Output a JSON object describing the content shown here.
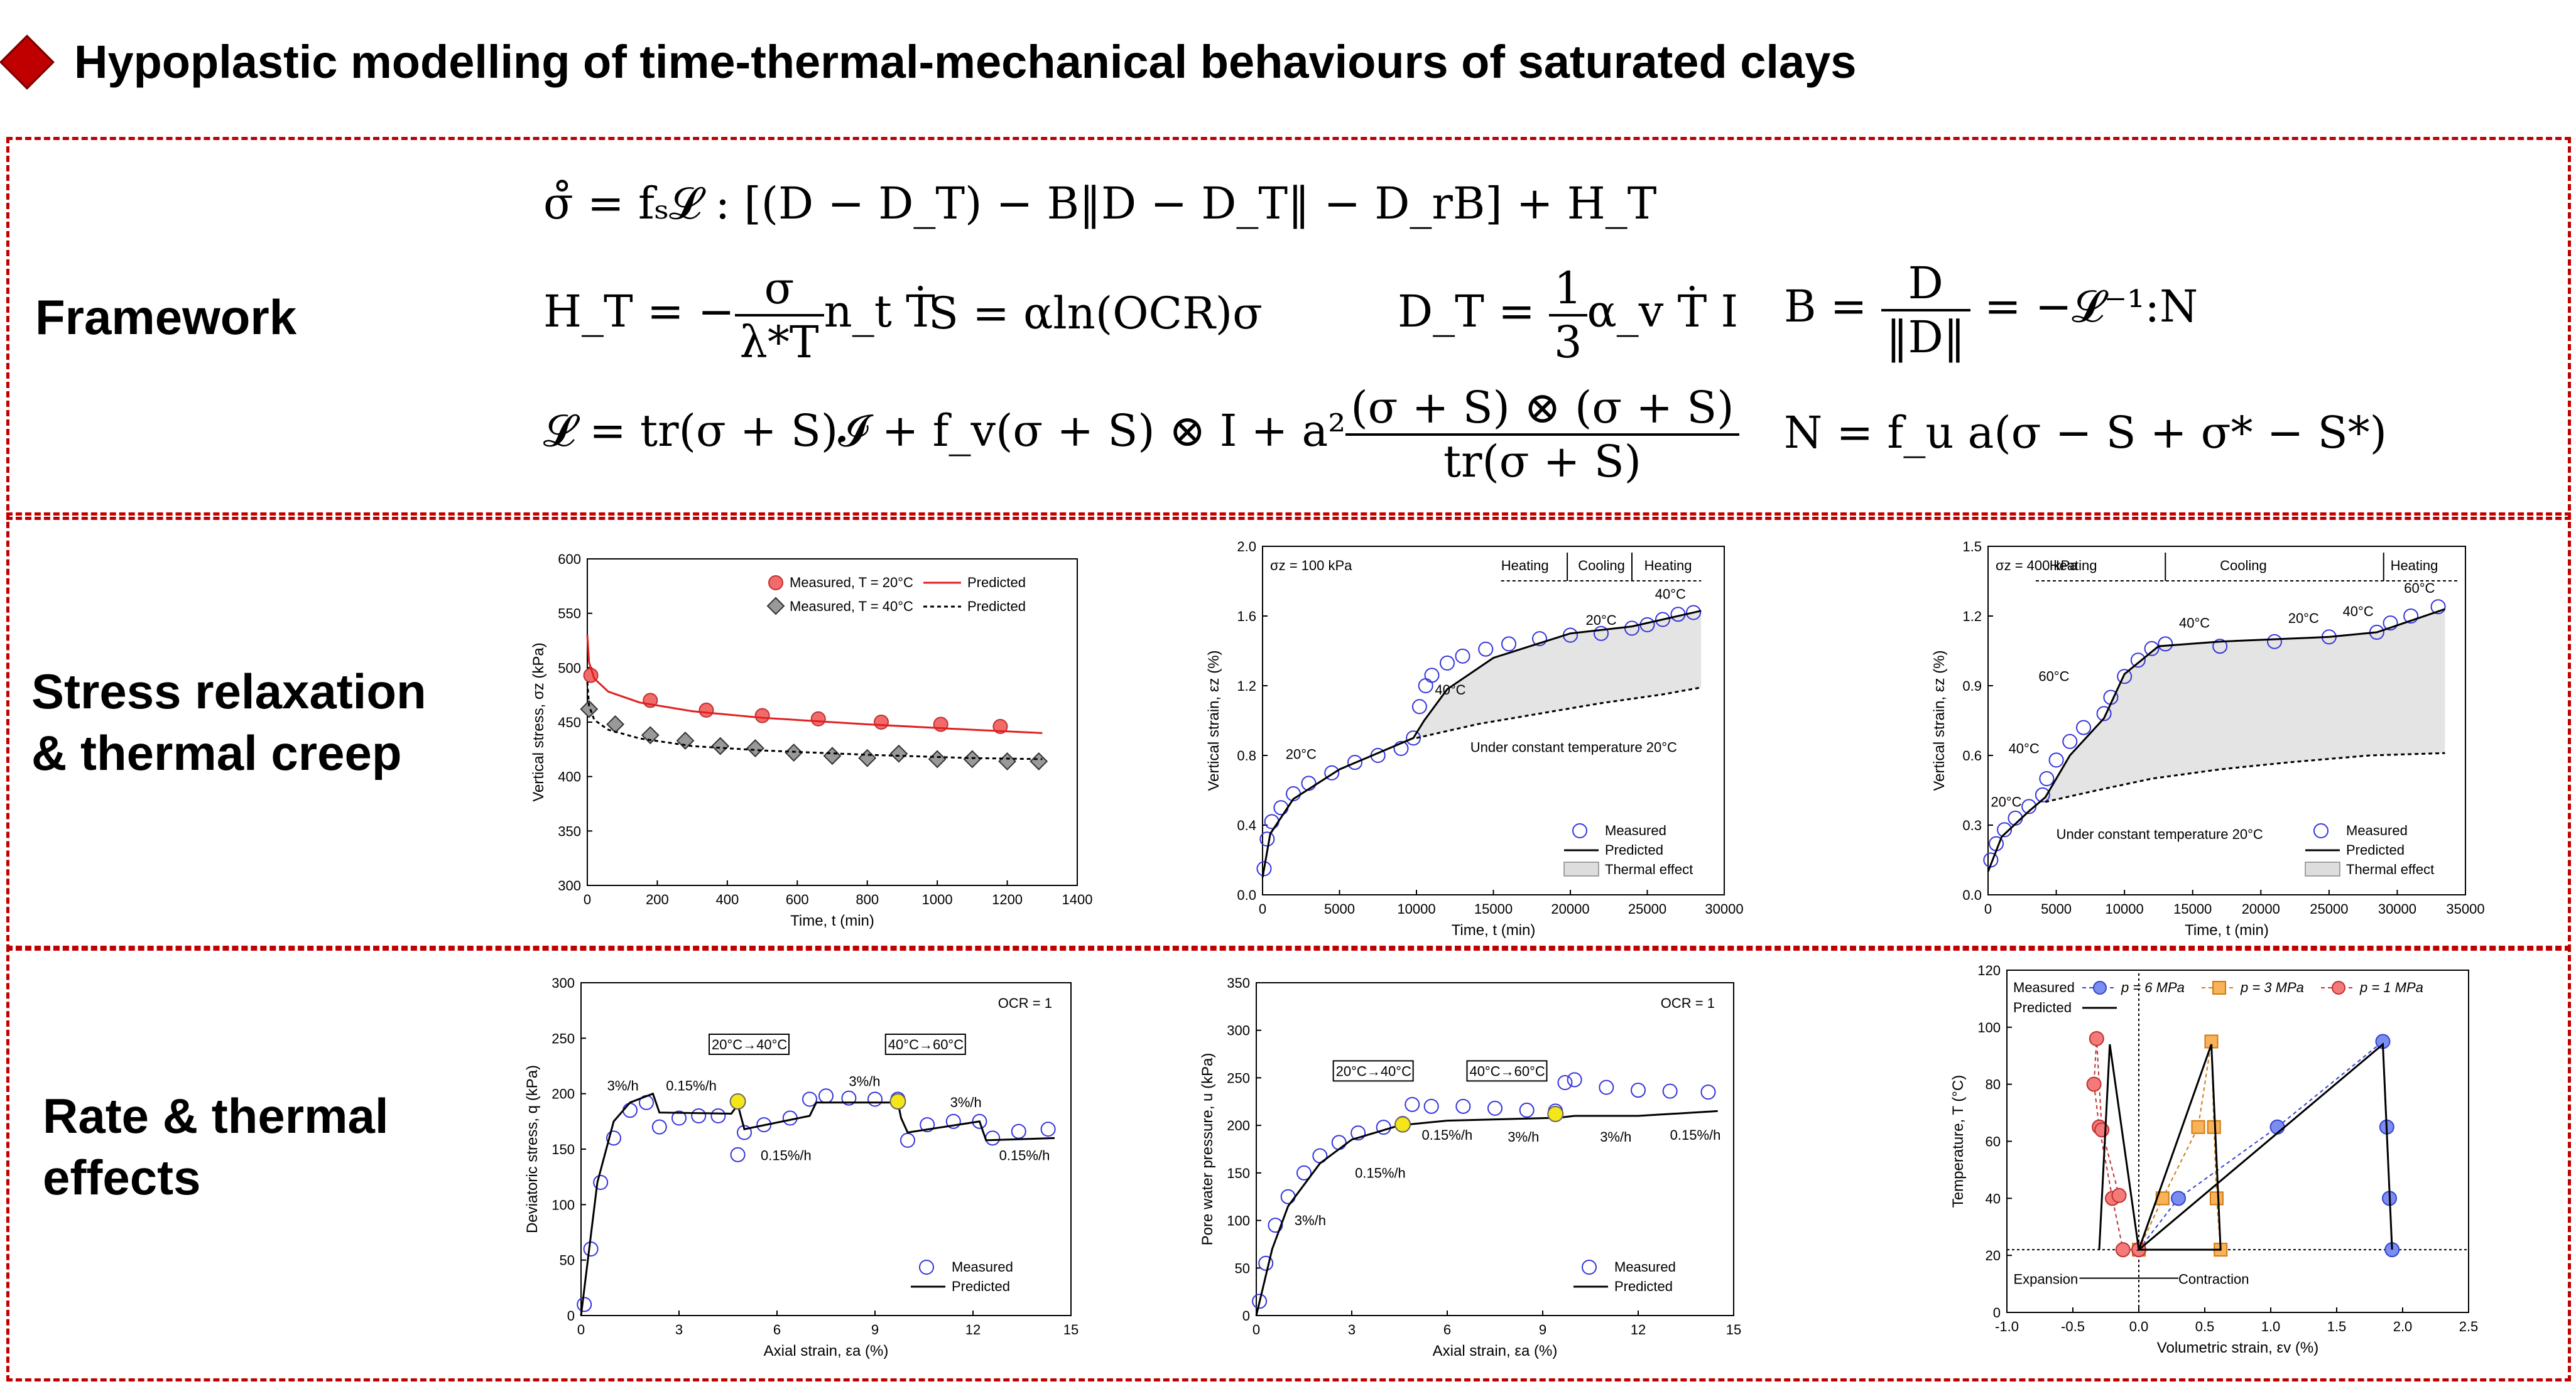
{
  "header": {
    "title": "Hypoplastic modelling of time-thermal-mechanical behaviours of  saturated clays",
    "bullet_color": "#c00000"
  },
  "sections": {
    "framework": "Framework",
    "stress_relaxation_line1": "Stress relaxation",
    "stress_relaxation_line2": "&  thermal creep",
    "rate_line1": "Rate & thermal",
    "rate_line2": "effects"
  },
  "equations": {
    "eq1": "σ̊ = fₛ𝓛 : [(D − D_T) − B‖D − D_T‖ − D_rB] + H_T",
    "eq2a_lhs": "H_T = −",
    "eq2a_num": "σ",
    "eq2a_den": "λ*T",
    "eq2a_rhs": "n_t Ṫ",
    "eq2b": "S = αln(OCR)σ",
    "eq2c_lhs": "D_T =",
    "eq2c_num": "1",
    "eq2c_den": "3",
    "eq2c_rhs": "α_v Ṫ I",
    "eq2d_lhs": "B =",
    "eq2d_num": "D",
    "eq2d_den": "‖D‖",
    "eq2d_rhs": "= −𝓛⁻¹:N",
    "eq3a_lhs": "𝓛   =   tr(σ + S)𝓘 + f_v(σ + S) ⊗ I + a²",
    "eq3a_num": "(σ + S) ⊗ (σ + S)",
    "eq3a_den": "tr(σ + S)",
    "eq3b": "N   =   f_u a(σ − S + σ* − S*)"
  },
  "chart_data": [
    {
      "type": "scatter",
      "xlabel": "Time, t (min)",
      "ylabel": "Vertical stress, σz (kPa)",
      "xlim": [
        0,
        1400
      ],
      "ylim": [
        300,
        600
      ],
      "xticks": [
        "0",
        "200",
        "400",
        "600",
        "800",
        "1000",
        "1200",
        "1400"
      ],
      "yticks": [
        "300",
        "350",
        "400",
        "450",
        "500",
        "550",
        "600"
      ],
      "legend": [
        "Measured, T = 20°C",
        "Measured, T = 40°C",
        "Predicted",
        "Predicted"
      ],
      "series": [
        {
          "name": "Measured, T = 20°C",
          "x": [
            10,
            180,
            340,
            500,
            660,
            840,
            1010,
            1180
          ],
          "y": [
            493,
            470,
            461,
            456,
            453,
            450,
            448,
            446
          ]
        },
        {
          "name": "Measured, T = 40°C",
          "x": [
            5,
            80,
            180,
            280,
            380,
            480,
            590,
            700,
            800,
            890,
            1000,
            1100,
            1200,
            1290
          ],
          "y": [
            462,
            448,
            438,
            433,
            428,
            426,
            422,
            419,
            417,
            421,
            416,
            416,
            414,
            414
          ]
        },
        {
          "name": "Predicted",
          "x": [
            0,
            5,
            20,
            60,
            150,
            300,
            500,
            800,
            1100,
            1300
          ],
          "y": [
            530,
            505,
            490,
            478,
            468,
            460,
            454,
            448,
            443,
            440
          ]
        },
        {
          "name": "Predicted",
          "x": [
            0,
            5,
            20,
            60,
            150,
            300,
            500,
            800,
            1100,
            1300
          ],
          "y": [
            487,
            465,
            452,
            443,
            435,
            428,
            424,
            420,
            417,
            416
          ]
        }
      ]
    },
    {
      "type": "scatter",
      "xlabel": "Time, t (min)",
      "ylabel": "Vertical strain, εz (%)",
      "xlim": [
        0,
        30000
      ],
      "ylim": [
        0,
        2.0
      ],
      "xticks": [
        "0",
        "5000",
        "10000",
        "15000",
        "20000",
        "25000",
        "30000"
      ],
      "yticks": [
        "0.0",
        "0.4",
        "0.8",
        "1.2",
        "1.6",
        "2.0"
      ],
      "annotations": [
        "σz = 100 kPa",
        "Heating",
        "Cooling",
        "Heating",
        "40°C",
        "20°C",
        "40°C",
        "20°C",
        "Under constant temperature 20°C"
      ],
      "legend": [
        "Measured",
        "Predicted",
        "Thermal effect"
      ],
      "series": [
        {
          "name": "Measured",
          "x": [
            100,
            300,
            600,
            1200,
            2000,
            3000,
            4500,
            6000,
            7500,
            9000,
            9800,
            10200,
            10600,
            11000,
            12000,
            13000,
            14500,
            16000,
            18000,
            20000,
            22000,
            24000,
            25000,
            26000,
            27000,
            28000
          ],
          "y": [
            0.15,
            0.32,
            0.42,
            0.5,
            0.58,
            0.64,
            0.7,
            0.76,
            0.8,
            0.84,
            0.9,
            1.08,
            1.2,
            1.26,
            1.33,
            1.37,
            1.41,
            1.44,
            1.47,
            1.49,
            1.5,
            1.53,
            1.55,
            1.58,
            1.61,
            1.62
          ]
        },
        {
          "name": "Predicted",
          "x": [
            0,
            500,
            2000,
            5000,
            9800,
            10500,
            12000,
            15000,
            20000,
            24000,
            28500
          ],
          "y": [
            0.1,
            0.35,
            0.55,
            0.72,
            0.9,
            1.0,
            1.18,
            1.36,
            1.5,
            1.54,
            1.63
          ]
        },
        {
          "name": "Under constant temperature 20°C",
          "x": [
            10000,
            14000,
            18000,
            22000,
            26000,
            28500
          ],
          "y": [
            0.9,
            0.98,
            1.04,
            1.1,
            1.15,
            1.19
          ]
        }
      ]
    },
    {
      "type": "scatter",
      "xlabel": "Time, t (min)",
      "ylabel": "Vertical strain, εz (%)",
      "xlim": [
        0,
        35000
      ],
      "ylim": [
        0,
        1.5
      ],
      "xticks": [
        "0",
        "5000",
        "10000",
        "15000",
        "20000",
        "25000",
        "30000",
        "35000"
      ],
      "yticks": [
        "0.0",
        "0.3",
        "0.6",
        "0.9",
        "1.2",
        "1.5"
      ],
      "annotations": [
        "σz = 400 kPa",
        "Heating",
        "Cooling",
        "Heating",
        "20°C",
        "40°C",
        "60°C",
        "40°C",
        "20°C",
        "40°C",
        "60°C",
        "Under constant temperature 20°C"
      ],
      "legend": [
        "Measured",
        "Predicted",
        "Thermal effect"
      ],
      "series": [
        {
          "name": "Measured",
          "x": [
            200,
            600,
            1200,
            2000,
            3000,
            4000,
            4300,
            5000,
            6000,
            7000,
            8500,
            9000,
            10000,
            11000,
            12000,
            13000,
            17000,
            21000,
            25000,
            28500,
            29500,
            31000,
            33000
          ],
          "y": [
            0.15,
            0.22,
            0.28,
            0.33,
            0.38,
            0.43,
            0.5,
            0.58,
            0.66,
            0.72,
            0.78,
            0.85,
            0.94,
            1.01,
            1.06,
            1.08,
            1.07,
            1.09,
            1.11,
            1.13,
            1.17,
            1.2,
            1.24
          ]
        },
        {
          "name": "Predicted",
          "x": [
            0,
            1000,
            3000,
            4200,
            6000,
            8500,
            10000,
            12500,
            17000,
            25000,
            28500,
            31000,
            33500
          ],
          "y": [
            0.1,
            0.25,
            0.36,
            0.42,
            0.6,
            0.76,
            0.95,
            1.07,
            1.09,
            1.11,
            1.13,
            1.18,
            1.23
          ]
        },
        {
          "name": "Under constant temperature 20°C",
          "x": [
            4200,
            8000,
            12000,
            17000,
            22000,
            28000,
            33500
          ],
          "y": [
            0.4,
            0.45,
            0.5,
            0.54,
            0.57,
            0.6,
            0.61
          ]
        }
      ]
    },
    {
      "type": "line",
      "xlabel": "Axial strain, εa (%)",
      "ylabel": "Deviatoric stress, q (kPa)",
      "xlim": [
        0,
        15
      ],
      "ylim": [
        0,
        300
      ],
      "xticks": [
        "0",
        "3",
        "6",
        "9",
        "12",
        "15"
      ],
      "yticks": [
        "0",
        "50",
        "100",
        "150",
        "200",
        "250",
        "300"
      ],
      "annotations": [
        "OCR = 1",
        "20°C→40°C",
        "40°C→60°C",
        "3%/h",
        "0.15%/h",
        "0.15%/h",
        "3%/h",
        "3%/h",
        "0.15%/h"
      ],
      "legend": [
        "Measured",
        "Predicted"
      ],
      "series": [
        {
          "name": "Measured",
          "x": [
            0.1,
            0.3,
            0.6,
            1.0,
            1.5,
            2.0,
            2.4,
            3.0,
            3.6,
            4.2,
            4.8,
            5.0,
            5.6,
            6.4,
            7.0,
            7.5,
            8.2,
            9.0,
            9.7,
            10.0,
            10.6,
            11.4,
            12.2,
            12.6,
            13.4,
            14.3
          ],
          "y": [
            10,
            60,
            120,
            160,
            185,
            192,
            170,
            178,
            180,
            180,
            145,
            165,
            172,
            178,
            195,
            198,
            196,
            195,
            195,
            158,
            172,
            175,
            175,
            160,
            166,
            168
          ]
        },
        {
          "name": "Predicted",
          "x": [
            0,
            0.5,
            1.0,
            1.5,
            2.2,
            2.4,
            4.6,
            4.8,
            5.0,
            7.0,
            7.2,
            9.7,
            9.8,
            10.0,
            12.2,
            12.4,
            14.5
          ],
          "y": [
            0,
            120,
            175,
            192,
            200,
            183,
            182,
            190,
            168,
            180,
            192,
            192,
            178,
            165,
            175,
            158,
            160
          ]
        }
      ]
    },
    {
      "type": "line",
      "xlabel": "Axial strain, εa (%)",
      "ylabel": "Pore water pressure, u (kPa)",
      "xlim": [
        0,
        15
      ],
      "ylim": [
        0,
        350
      ],
      "xticks": [
        "0",
        "3",
        "6",
        "9",
        "12",
        "15"
      ],
      "yticks": [
        "0",
        "50",
        "100",
        "150",
        "200",
        "250",
        "300",
        "350"
      ],
      "annotations": [
        "OCR = 1",
        "20°C→40°C",
        "40°C→60°C",
        "3%/h",
        "0.15%/h",
        "0.15%/h",
        "3%/h",
        "3%/h",
        "0.15%/h"
      ],
      "legend": [
        "Measured",
        "Predicted"
      ],
      "series": [
        {
          "name": "Measured",
          "x": [
            0.1,
            0.3,
            0.6,
            1.0,
            1.5,
            2.0,
            2.6,
            3.2,
            4.0,
            4.6,
            4.9,
            5.5,
            6.5,
            7.5,
            8.5,
            9.4,
            9.7,
            10.0,
            11.0,
            12.0,
            13.0,
            14.2
          ],
          "y": [
            15,
            55,
            95,
            125,
            150,
            168,
            182,
            192,
            198,
            202,
            222,
            220,
            220,
            218,
            216,
            215,
            245,
            248,
            240,
            237,
            236,
            235
          ]
        },
        {
          "name": "Predicted",
          "x": [
            0,
            0.5,
            1.0,
            2.0,
            3.0,
            4.5,
            6.0,
            9.5,
            10.0,
            12.0,
            14.5
          ],
          "y": [
            0,
            70,
            115,
            160,
            185,
            200,
            205,
            208,
            210,
            210,
            215
          ]
        }
      ]
    },
    {
      "type": "line",
      "xlabel": "Volumetric strain, εv (%)",
      "ylabel": "Temperature, T (°C)",
      "xlim": [
        -1.0,
        2.5
      ],
      "ylim": [
        0,
        120
      ],
      "xticks": [
        "-1.0",
        "-0.5",
        "0.0",
        "0.5",
        "1.0",
        "1.5",
        "2.0",
        "2.5"
      ],
      "yticks": [
        "0",
        "20",
        "40",
        "60",
        "80",
        "100",
        "120"
      ],
      "annotations": [
        "Expansion",
        "Contraction"
      ],
      "legend": [
        "Measured",
        "p = 6 MPa",
        "p = 3 MPa",
        "p = 1 MPa",
        "Predicted"
      ],
      "series": [
        {
          "name": "p = 6 MPa",
          "x": [
            0,
            0.3,
            1.05,
            1.85,
            1.88,
            1.9,
            1.92
          ],
          "y": [
            22,
            40,
            65,
            95,
            65,
            40,
            22
          ]
        },
        {
          "name": "p = 3 MPa",
          "x": [
            0,
            0.18,
            0.45,
            0.55,
            0.57,
            0.59,
            0.62
          ],
          "y": [
            22,
            40,
            65,
            95,
            65,
            40,
            22
          ]
        },
        {
          "name": "p = 1 MPa",
          "x": [
            0,
            -0.12,
            -0.2,
            -0.3,
            -0.34,
            -0.32,
            -0.28,
            -0.15
          ],
          "y": [
            22,
            22,
            40,
            65,
            80,
            96,
            64,
            41
          ]
        },
        {
          "name": "Predicted",
          "x": [
            -0.3,
            -0.22,
            0.0,
            0.55,
            0.62,
            0.0,
            1.85,
            1.92
          ],
          "y": [
            22,
            94,
            22,
            94,
            22,
            22,
            94,
            22
          ]
        }
      ]
    }
  ]
}
